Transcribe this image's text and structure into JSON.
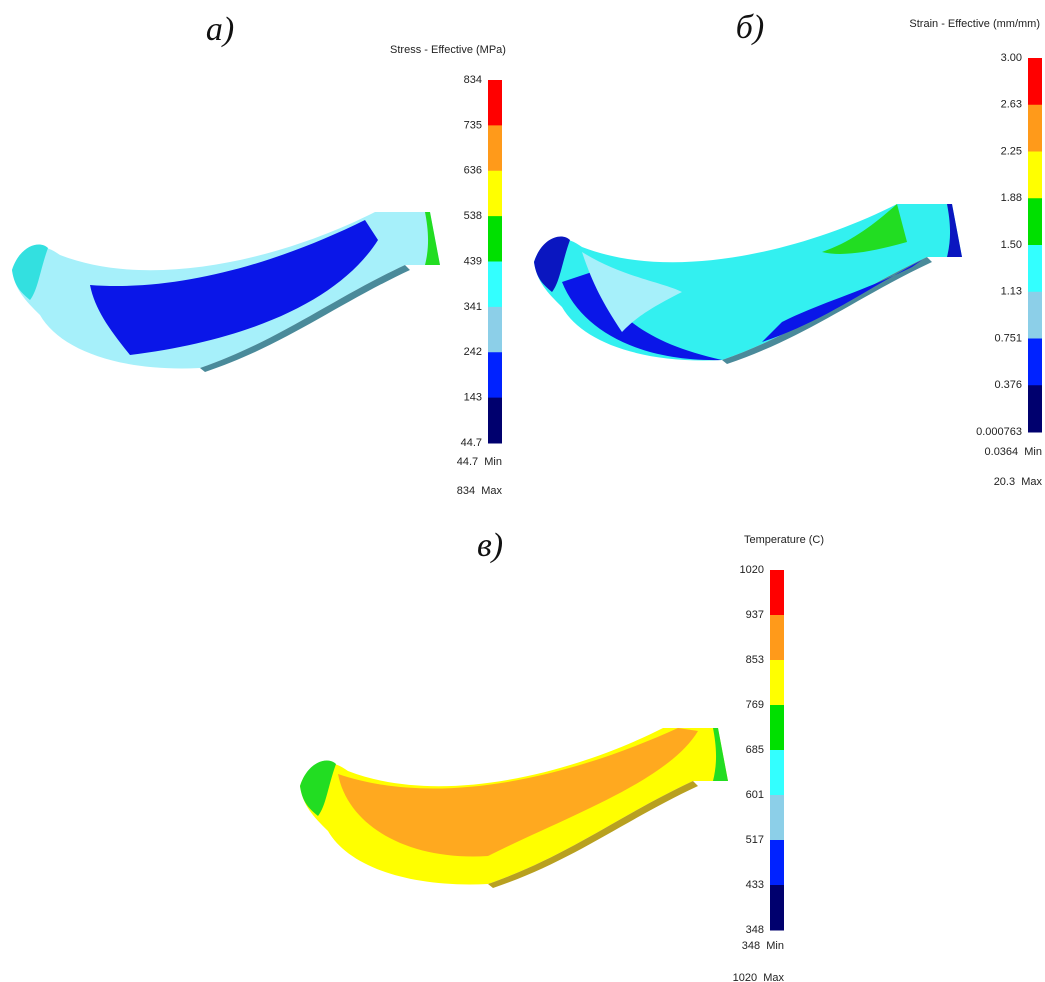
{
  "panels": [
    {
      "label": "а)",
      "legend_title": "Stress - Effective (MPa)",
      "ticks": [
        "834",
        "735",
        "636",
        "538",
        "439",
        "341",
        "242",
        "143",
        "44.7"
      ],
      "min": "44.7  Min",
      "max": "834  Max"
    },
    {
      "label": "б)",
      "legend_title": "Strain - Effective (mm/mm)",
      "ticks": [
        "3.00",
        "2.63",
        "2.25",
        "1.88",
        "1.50",
        "1.13",
        "0.751",
        "0.376",
        "0.000763"
      ],
      "min": "0.0364  Min",
      "max": "20.3  Max"
    },
    {
      "label": "в)",
      "legend_title": "Temperature (C)",
      "ticks": [
        "1020",
        "937",
        "853",
        "769",
        "685",
        "601",
        "517",
        "433",
        "348"
      ],
      "min": "348  Min",
      "max": "1020  Max"
    }
  ]
}
